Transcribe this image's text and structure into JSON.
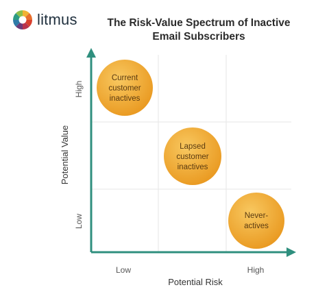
{
  "logo": {
    "word": "litmus"
  },
  "title": {
    "line1": "The Risk-Value Spectrum of Inactive",
    "line2": "Email Subscribers"
  },
  "axes": {
    "x_title": "Potential Risk",
    "y_title": "Potential Value",
    "x_low": "Low",
    "x_high": "High",
    "y_low": "Low",
    "y_high": "High"
  },
  "bubbles": [
    {
      "lines": [
        "Current",
        "customer",
        "inactives"
      ]
    },
    {
      "lines": [
        "Lapsed",
        "customer",
        "inactives"
      ]
    },
    {
      "lines": [
        "Never-",
        "actives"
      ]
    }
  ],
  "colors": {
    "axis": "#2f8f7e",
    "grid": "#e6e6e6",
    "bubble_light": "#f6bf4f",
    "bubble_dark": "#ea9a22"
  }
}
